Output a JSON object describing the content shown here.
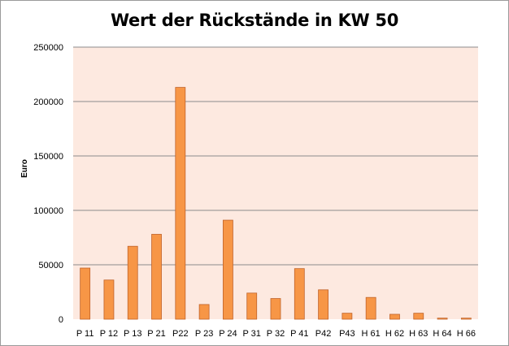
{
  "chart_data": {
    "type": "bar",
    "title": "Wert der Rückstände in KW 50",
    "xlabel": "",
    "ylabel": "Euro",
    "ylim": [
      0,
      250000
    ],
    "yticks": [
      "0",
      "50000",
      "100000",
      "150000",
      "200000",
      "250000"
    ],
    "grid": true,
    "legend": "none",
    "categories": [
      "P 11",
      "P 12",
      "P 13",
      "P 21",
      "P22",
      "P 23",
      "P 24",
      "P 31",
      "P 32",
      "P 41",
      "P42",
      "P43",
      "H 61",
      "H 62",
      "H 63",
      "H 64",
      "H 66"
    ],
    "series": [
      {
        "values": [
          47000,
          36000,
          67000,
          78000,
          213000,
          13500,
          91000,
          24000,
          19000,
          46500,
          27000,
          5500,
          20000,
          4500,
          5500,
          1000,
          1000
        ],
        "color": "#f79646"
      }
    ],
    "colors": {
      "plot_background": "#fde9e0",
      "bar_fill": "#f79646",
      "bar_stroke": "#c0632a",
      "gridline": "#8c8c8c"
    }
  }
}
